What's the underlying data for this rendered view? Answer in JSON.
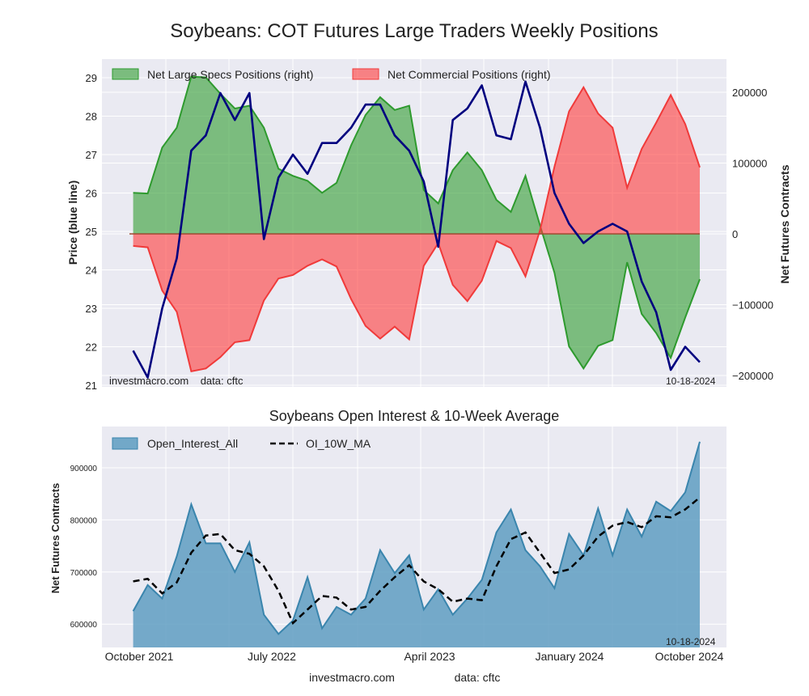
{
  "chart_data": [
    {
      "type": "line+area",
      "title": "Soybeans: COT Futures Large Traders Weekly Positions",
      "ylabel_left": "Price (blue line)",
      "ylabel_right": "Net Futures Contracts",
      "ylim_left": [
        21,
        29.4
      ],
      "ylim_right": [
        -215000,
        240000
      ],
      "yticks_left": [
        "21",
        "22",
        "23",
        "24",
        "25",
        "26",
        "27",
        "28",
        "29"
      ],
      "yticks_right": [
        "200000",
        "100000",
        "0",
        "−100000",
        "−200000"
      ],
      "grid": true,
      "legend_position": "top-left",
      "watermark": "investmacro.com    data: cftc",
      "date_stamp": "10-18-2024",
      "colors": {
        "price": "#00007f",
        "specs": "#2e9a2e",
        "commercial": "#f03a3a",
        "background": "#eaeaf2"
      },
      "x": [
        "2021-10-22",
        "2021-11-19",
        "2021-12-17",
        "2022-01-14",
        "2022-02-11",
        "2022-03-11",
        "2022-04-08",
        "2022-05-06",
        "2022-06-03",
        "2022-07-01",
        "2022-07-29",
        "2022-08-26",
        "2022-09-23",
        "2022-10-21",
        "2022-11-18",
        "2022-12-16",
        "2023-01-13",
        "2023-02-10",
        "2023-03-10",
        "2023-04-07",
        "2023-05-05",
        "2023-06-02",
        "2023-06-30",
        "2023-07-28",
        "2023-08-25",
        "2023-09-22",
        "2023-10-20",
        "2023-11-17",
        "2023-12-15",
        "2024-01-12",
        "2024-02-09",
        "2024-03-08",
        "2024-04-05",
        "2024-05-03",
        "2024-05-31",
        "2024-06-28",
        "2024-07-26",
        "2024-08-23",
        "2024-09-20",
        "2024-10-18"
      ],
      "series": [
        {
          "name": "Net Large Specs Positions (right)",
          "axis": "right",
          "style": "area",
          "values": [
            58000,
            57000,
            122000,
            150000,
            222000,
            221000,
            198000,
            177000,
            181000,
            150000,
            92000,
            82000,
            75000,
            58000,
            72000,
            125000,
            168000,
            193000,
            175000,
            181000,
            62000,
            43000,
            90000,
            115000,
            90000,
            48000,
            31000,
            82000,
            12000,
            -55000,
            -159000,
            -190000,
            -158000,
            -150000,
            -40000,
            -113000,
            -140000,
            -175000,
            -118000,
            -64000
          ]
        },
        {
          "name": "Net Commercial Positions (right)",
          "axis": "right",
          "style": "area",
          "values": [
            -17000,
            -19000,
            -80000,
            -110000,
            -194000,
            -190000,
            -174000,
            -153000,
            -150000,
            -94000,
            -63000,
            -58000,
            -45000,
            -36000,
            -46000,
            -92000,
            -130000,
            -148000,
            -131000,
            -149000,
            -45000,
            -13000,
            -72000,
            -95000,
            -66000,
            -10000,
            -20000,
            -60000,
            5000,
            95000,
            173000,
            207000,
            170000,
            150000,
            65000,
            120000,
            157000,
            196000,
            155000,
            94000
          ]
        },
        {
          "axis": "left",
          "style": "line",
          "values": [
            21.9,
            21.2,
            23.0,
            24.3,
            27.1,
            27.5,
            28.6,
            27.9,
            28.6,
            24.8,
            26.4,
            27.0,
            26.5,
            27.3,
            27.3,
            27.7,
            28.3,
            28.3,
            27.5,
            27.1,
            26.3,
            24.6,
            27.9,
            28.2,
            28.8,
            27.5,
            27.4,
            28.9,
            27.7,
            26.0,
            25.2,
            24.7,
            25.0,
            25.2,
            25.0,
            23.7,
            22.9,
            21.4,
            22.0,
            21.6
          ]
        }
      ]
    },
    {
      "type": "area+line",
      "title": "Soybeans Open Interest & 10-Week Average",
      "ylabel": "Net Futures Contracts",
      "ylim": [
        555000,
        979000
      ],
      "yticks": [
        "600000",
        "700000",
        "800000",
        "900000"
      ],
      "xtick_labels": [
        "October 2021",
        "July 2022",
        "April 2023",
        "January 2024",
        "October 2024"
      ],
      "grid": true,
      "legend_position": "top-left",
      "date_stamp": "10-18-2024",
      "colors": {
        "open_interest": "#3a85ad",
        "ma": "#000000"
      },
      "x": [
        "2021-10-22",
        "2021-11-19",
        "2021-12-17",
        "2022-01-14",
        "2022-02-11",
        "2022-03-11",
        "2022-04-08",
        "2022-05-06",
        "2022-06-03",
        "2022-07-01",
        "2022-07-29",
        "2022-08-26",
        "2022-09-23",
        "2022-10-21",
        "2022-11-18",
        "2022-12-16",
        "2023-01-13",
        "2023-02-10",
        "2023-03-10",
        "2023-04-07",
        "2023-05-05",
        "2023-06-02",
        "2023-06-30",
        "2023-07-28",
        "2023-08-25",
        "2023-09-22",
        "2023-10-20",
        "2023-11-17",
        "2023-12-15",
        "2024-01-12",
        "2024-02-09",
        "2024-03-08",
        "2024-04-05",
        "2024-05-03",
        "2024-05-31",
        "2024-06-28",
        "2024-07-26",
        "2024-08-23",
        "2024-09-20",
        "2024-10-18"
      ],
      "series": [
        {
          "name": "Open_Interest_All",
          "style": "area",
          "values": [
            625000,
            675000,
            649000,
            730000,
            830000,
            755000,
            755000,
            700000,
            757000,
            618000,
            581000,
            607000,
            690000,
            592000,
            633000,
            618000,
            649000,
            742000,
            698000,
            732000,
            628000,
            667000,
            618000,
            649000,
            685000,
            776000,
            820000,
            742000,
            711000,
            669000,
            773000,
            732000,
            822000,
            732000,
            820000,
            768000,
            835000,
            817000,
            853000,
            950000
          ]
        },
        {
          "name": "OI_10W_MA",
          "style": "dashed-line",
          "values": [
            682000,
            687000,
            659000,
            680000,
            737000,
            770000,
            773000,
            742000,
            735000,
            711000,
            664000,
            602000,
            628000,
            654000,
            651000,
            628000,
            633000,
            664000,
            690000,
            713000,
            682000,
            667000,
            643000,
            649000,
            646000,
            711000,
            763000,
            776000,
            737000,
            698000,
            705000,
            732000,
            768000,
            789000,
            796000,
            786000,
            807000,
            805000,
            820000,
            843000
          ]
        }
      ]
    }
  ],
  "footer": {
    "site": "investmacro.com",
    "source": "data: cftc"
  }
}
